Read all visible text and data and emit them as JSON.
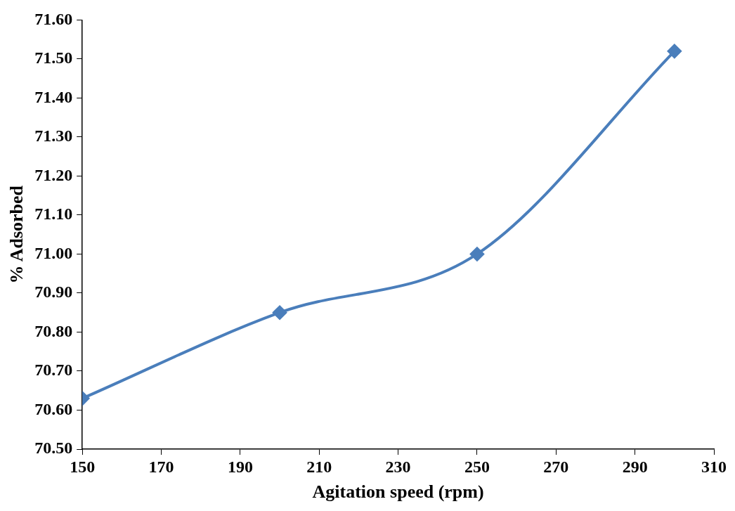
{
  "chart_data": {
    "type": "line",
    "xlabel": "Agitation speed (rpm)",
    "ylabel": "% Adsorbed",
    "series": [
      {
        "color": "#4a7ebb",
        "x": [
          150,
          200,
          250,
          300
        ],
        "values": [
          70.63,
          70.85,
          71.0,
          71.52
        ]
      }
    ],
    "marker": "diamond",
    "xlim": [
      150,
      310
    ],
    "xticks": [
      150,
      170,
      190,
      210,
      230,
      250,
      270,
      290,
      310
    ],
    "ylim": [
      70.5,
      71.6
    ],
    "yticks": [
      {
        "value": 70.5,
        "label": "70.50"
      },
      {
        "value": 70.6,
        "label": "70.60"
      },
      {
        "value": 70.7,
        "label": "70.70"
      },
      {
        "value": 70.8,
        "label": "70.80"
      },
      {
        "value": 70.9,
        "label": "70.90"
      },
      {
        "value": 71.0,
        "label": "71.00"
      },
      {
        "value": 71.1,
        "label": "71.10"
      },
      {
        "value": 71.2,
        "label": "71.20"
      },
      {
        "value": 71.3,
        "label": "71.30"
      },
      {
        "value": 71.4,
        "label": "71.40"
      },
      {
        "value": 71.5,
        "label": "71.50"
      },
      {
        "value": 71.6,
        "label": "71.60"
      }
    ]
  }
}
